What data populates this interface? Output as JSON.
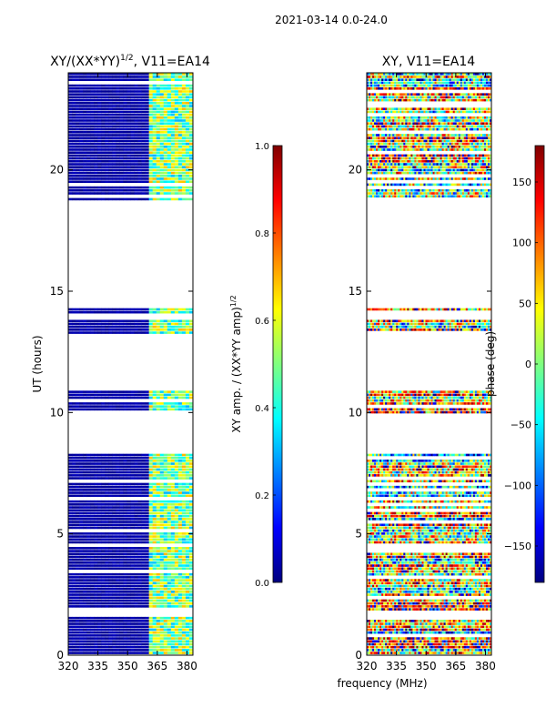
{
  "suptitle": "2021-03-14 0.0-24.0",
  "shared_xlabel": "frequency (MHz)",
  "chart_data": [
    {
      "type": "heatmap",
      "title_main": "XY/(XX*YY)",
      "title_exp": "1/2",
      "title_suffix": ", V11=EA14",
      "ylabel": "UT (hours)",
      "xlim": [
        320,
        383
      ],
      "ylim": [
        0,
        24
      ],
      "xticks": [
        320,
        335,
        350,
        365,
        380
      ],
      "yticks": [
        0,
        5,
        10,
        15,
        20
      ],
      "data_bands_hours": [
        [
          0,
          8.3
        ],
        [
          9.9,
          10.9
        ],
        [
          13.2,
          14.3
        ],
        [
          18.7,
          24
        ]
      ],
      "colorbar": {
        "label_main": "XY amp. / (XX*YY amp)",
        "label_exp": "1/2",
        "range": [
          0.0,
          1.0
        ],
        "ticks": [
          "0.0",
          "0.2",
          "0.4",
          "0.6",
          "0.8",
          "1.0"
        ],
        "colormap": "jet"
      }
    },
    {
      "type": "heatmap",
      "title": "XY, V11=EA14",
      "xlim": [
        320,
        383
      ],
      "ylim": [
        0,
        24
      ],
      "xticks": [
        320,
        335,
        350,
        365,
        380
      ],
      "yticks": [
        0,
        5,
        10,
        15,
        20
      ],
      "data_bands_hours": [
        [
          0,
          8.3
        ],
        [
          9.9,
          10.9
        ],
        [
          13.2,
          14.3
        ],
        [
          18.7,
          24
        ]
      ],
      "colorbar": {
        "label": "phase (deg)",
        "range": [
          -180,
          180
        ],
        "ticks": [
          "−150",
          "−100",
          "−50",
          "0",
          "50",
          "100",
          "150"
        ],
        "colormap": "jet"
      }
    }
  ]
}
